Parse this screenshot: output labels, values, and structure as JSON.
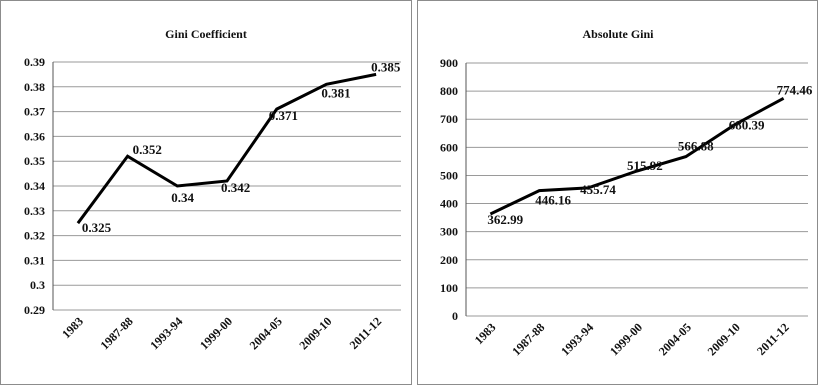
{
  "chart_data": [
    {
      "type": "line",
      "title": "Gini Coefficient",
      "categories": [
        "1983",
        "1987-88",
        "1993-94",
        "1999-00",
        "2004-05",
        "2009-10",
        "2011-12"
      ],
      "values": [
        0.325,
        0.352,
        0.34,
        0.342,
        0.371,
        0.381,
        0.385
      ],
      "data_labels": [
        "0.325",
        "0.352",
        "0.34",
        "0.342",
        "0.371",
        "0.381",
        "0.385"
      ],
      "ylim": [
        0.29,
        0.39
      ],
      "yticks": [
        "0.39",
        "0.38",
        "0.37",
        "0.36",
        "0.35",
        "0.34",
        "0.33",
        "0.32",
        "0.31",
        "0.3",
        "0.29"
      ],
      "grid": true,
      "xlabel": "",
      "ylabel": ""
    },
    {
      "type": "line",
      "title": "Absolute Gini",
      "categories": [
        "1983",
        "1987-88",
        "1993-94",
        "1999-00",
        "2004-05",
        "2009-10",
        "2011-12"
      ],
      "values": [
        362.99,
        446.16,
        455.74,
        515.92,
        566.88,
        680.39,
        774.46
      ],
      "data_labels": [
        "362.99",
        "446.16",
        "455.74",
        "515.92",
        "566.88",
        "680.39",
        "774.46"
      ],
      "ylim": [
        0,
        900
      ],
      "yticks": [
        "900",
        "800",
        "700",
        "600",
        "500",
        "400",
        "300",
        "200",
        "100",
        "0"
      ],
      "grid": true,
      "xlabel": "",
      "ylabel": ""
    }
  ]
}
